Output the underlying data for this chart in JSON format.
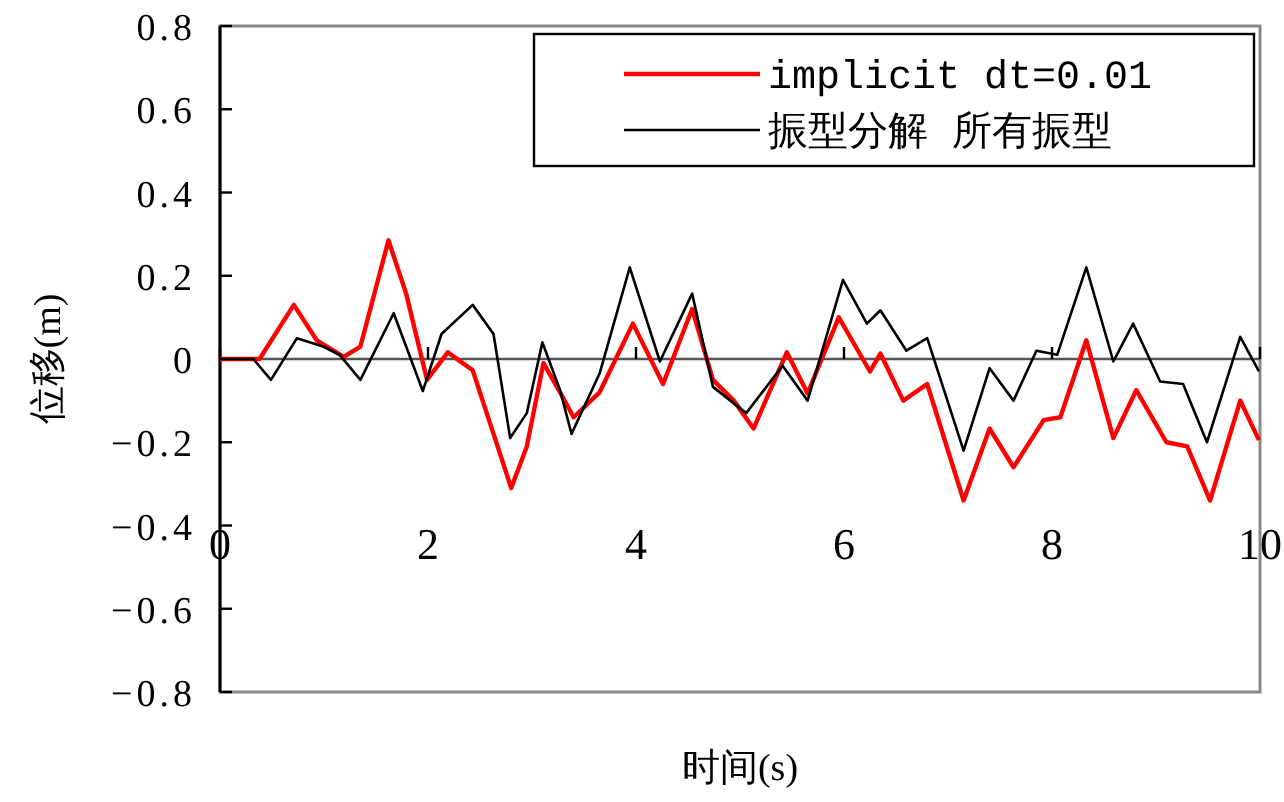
{
  "chart_data": {
    "type": "line",
    "xlabel": "时间(s)",
    "ylabel": "位移(m)",
    "xlim": [
      0,
      10
    ],
    "ylim": [
      -0.8,
      0.8
    ],
    "xticks": [
      0,
      2,
      4,
      6,
      8,
      10
    ],
    "yticks": [
      -0.8,
      -0.6,
      -0.4,
      -0.2,
      0,
      0.2,
      0.4,
      0.6,
      0.8
    ],
    "legend": "top right",
    "marker": "none",
    "series": [
      {
        "name": "implicit dt=0.01",
        "color": "#ff0000",
        "line_style": "solid",
        "x": [
          0,
          0.38,
          0.71,
          0.93,
          1.19,
          1.35,
          1.62,
          1.79,
          1.99,
          2.19,
          2.43,
          2.63,
          2.8,
          2.95,
          3.11,
          3.27,
          3.4,
          3.65,
          3.97,
          4.26,
          4.54,
          4.74,
          4.94,
          5.13,
          5.45,
          5.65,
          5.95,
          6.25,
          6.35,
          6.57,
          6.8,
          7.15,
          7.4,
          7.63,
          7.92,
          8.08,
          8.33,
          8.59,
          8.81,
          9.1,
          9.3,
          9.52,
          9.81,
          9.99
        ],
        "values": [
          0,
          0,
          0.13,
          0.045,
          0.005,
          0.03,
          0.285,
          0.157,
          -0.05,
          0.016,
          -0.027,
          -0.18,
          -0.31,
          -0.21,
          -0.01,
          -0.08,
          -0.14,
          -0.08,
          0.085,
          -0.06,
          0.12,
          -0.05,
          -0.1,
          -0.167,
          0.016,
          -0.083,
          0.1,
          -0.03,
          0.013,
          -0.1,
          -0.06,
          -0.34,
          -0.167,
          -0.26,
          -0.147,
          -0.14,
          0.045,
          -0.19,
          -0.075,
          -0.2,
          -0.21,
          -0.34,
          -0.1,
          -0.195
        ]
      },
      {
        "name": "振型分解 所有振型",
        "color": "#000000",
        "line_style": "solid",
        "x": [
          0,
          0.32,
          0.49,
          0.74,
          0.99,
          1.15,
          1.35,
          1.67,
          1.95,
          2.13,
          2.43,
          2.63,
          2.79,
          2.95,
          3.1,
          3.27,
          3.38,
          3.65,
          3.94,
          4.23,
          4.54,
          4.74,
          5.06,
          5.41,
          5.65,
          5.99,
          6.22,
          6.35,
          6.6,
          6.8,
          7.15,
          7.4,
          7.63,
          7.85,
          8.05,
          8.33,
          8.59,
          8.78,
          9.04,
          9.26,
          9.49,
          9.81,
          9.99
        ],
        "values": [
          0,
          0,
          -0.05,
          0.05,
          0.03,
          0.01,
          -0.05,
          0.11,
          -0.077,
          0.06,
          0.13,
          0.06,
          -0.19,
          -0.13,
          0.04,
          -0.075,
          -0.18,
          -0.035,
          0.22,
          -0.006,
          0.157,
          -0.067,
          -0.13,
          -0.016,
          -0.1,
          0.19,
          0.085,
          0.117,
          0.02,
          0.05,
          -0.22,
          -0.022,
          -0.1,
          0.02,
          0.01,
          0.22,
          -0.006,
          0.085,
          -0.054,
          -0.06,
          -0.2,
          0.053,
          -0.03
        ]
      }
    ]
  }
}
